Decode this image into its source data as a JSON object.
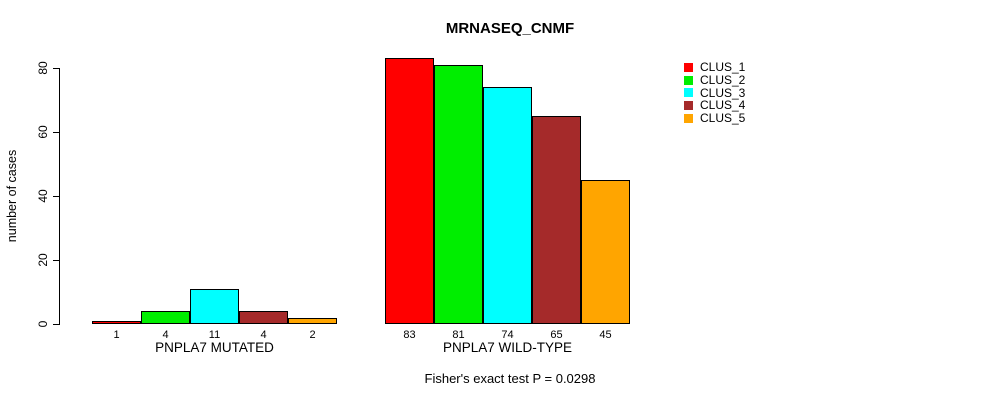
{
  "chart_data": {
    "type": "bar",
    "title": "MRNASEQ_CNMF",
    "subtitle": "Fisher's exact test P = 0.0298",
    "xlabel": "",
    "ylabel": "number of cases",
    "ylim": [
      0,
      80
    ],
    "yticks": [
      0,
      20,
      40,
      60,
      80
    ],
    "grid": false,
    "legend_position": "top-right",
    "bar_value_labels_shown": true,
    "groups": [
      {
        "label": "PNPLA7 MUTATED",
        "values": [
          1,
          4,
          11,
          4,
          2
        ]
      },
      {
        "label": "PNPLA7 WILD-TYPE",
        "values": [
          83,
          81,
          74,
          65,
          45
        ]
      }
    ],
    "series": [
      {
        "name": "CLUS_1",
        "color": "#ff0000"
      },
      {
        "name": "CLUS_2",
        "color": "#00ee00"
      },
      {
        "name": "CLUS_3",
        "color": "#00ffff"
      },
      {
        "name": "CLUS_4",
        "color": "#a52a2a"
      },
      {
        "name": "CLUS_5",
        "color": "#ffa500"
      }
    ]
  }
}
